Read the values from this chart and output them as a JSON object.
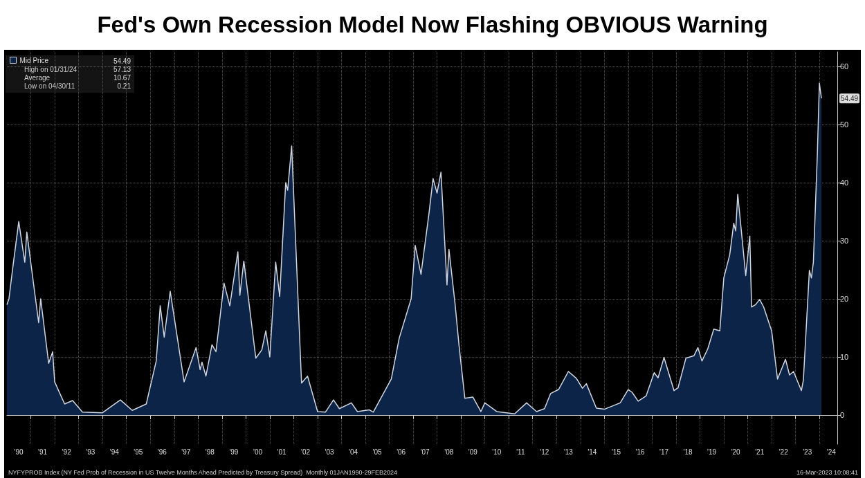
{
  "chart_data": {
    "type": "area",
    "title": "Fed's Own Recession Model Now Flashing OBVIOUS Warning",
    "x": [
      "1990-01",
      "1990-02",
      "1990-04",
      "1990-07",
      "1990-10",
      "1990-11",
      "1991-03",
      "1991-05",
      "1991-06",
      "1991-10",
      "1991-12",
      "1992-01",
      "1992-06",
      "1992-10",
      "1993-03",
      "1994-01",
      "1994-10",
      "1995-04",
      "1995-11",
      "1996-04",
      "1996-06",
      "1996-08",
      "1996-11",
      "1997-06",
      "1997-12",
      "1998-02",
      "1998-03",
      "1998-05",
      "1998-08",
      "1998-10",
      "1999-02",
      "1999-05",
      "1999-09",
      "1999-10",
      "1999-12",
      "2000-06",
      "2000-09",
      "2000-11",
      "2001-01",
      "2001-04",
      "2001-06",
      "2001-09",
      "2001-10",
      "2001-12",
      "2002-05",
      "2002-08",
      "2003-01",
      "2003-05",
      "2003-09",
      "2003-12",
      "2004-06",
      "2004-09",
      "2005-03",
      "2005-05",
      "2006-02",
      "2006-06",
      "2006-12",
      "2007-02",
      "2007-05",
      "2007-09",
      "2007-11",
      "2008-01",
      "2008-03",
      "2008-06",
      "2008-07",
      "2008-10",
      "2008-12",
      "2009-03",
      "2009-07",
      "2009-11",
      "2010-01",
      "2010-07",
      "2011-04",
      "2011-10",
      "2012-03",
      "2012-07",
      "2012-10",
      "2013-02",
      "2013-07",
      "2013-11",
      "2014-02",
      "2014-04",
      "2014-09",
      "2015-01",
      "2015-09",
      "2016-01",
      "2016-03",
      "2016-06",
      "2016-10",
      "2017-02",
      "2017-04",
      "2017-07",
      "2017-12",
      "2018-02",
      "2018-06",
      "2018-10",
      "2018-12",
      "2019-02",
      "2019-05",
      "2019-08",
      "2019-11",
      "2020-01",
      "2020-04",
      "2020-06",
      "2020-07",
      "2020-08",
      "2020-12",
      "2021-02",
      "2021-03",
      "2021-05",
      "2021-07",
      "2021-09",
      "2022-01",
      "2022-04",
      "2022-08",
      "2022-10",
      "2022-12",
      "2023-04",
      "2023-05",
      "2023-08",
      "2023-09",
      "2023-10",
      "2023-12",
      "2024-01",
      "2024-02"
    ],
    "series": [
      {
        "name": "Mid Price",
        "color": "#0b2447",
        "values": [
          19,
          20,
          25.4,
          33.3,
          26.3,
          31.5,
          21.1,
          15.9,
          20,
          8.9,
          10.9,
          5.7,
          1.9,
          2.5,
          0.5,
          0.4,
          2.6,
          0.8,
          1.9,
          9.3,
          18.8,
          13.4,
          21.3,
          5.7,
          11.6,
          7.8,
          9.1,
          6.7,
          12.1,
          10.9,
          22.7,
          18.8,
          28.1,
          20.6,
          26.5,
          9.8,
          11.2,
          14.5,
          10,
          26.3,
          20.4,
          40,
          38.7,
          46.3,
          5.5,
          6.7,
          0.6,
          0.5,
          2.6,
          1.1,
          2.1,
          0.6,
          0.9,
          0.5,
          6.2,
          13.2,
          20,
          29.2,
          24.2,
          34.8,
          40.7,
          38.2,
          41.8,
          22.4,
          28.5,
          19.3,
          12.1,
          2.9,
          3.1,
          0.6,
          2.1,
          0.6,
          0.2,
          2.1,
          0.6,
          1.1,
          3.7,
          4.4,
          7.5,
          6.3,
          4.6,
          5.4,
          1.2,
          1,
          2.1,
          4.4,
          3.9,
          2.4,
          3.3,
          7.3,
          6.4,
          9.9,
          4.2,
          4.7,
          9.8,
          10.2,
          11.6,
          9.3,
          11.4,
          14.8,
          14.5,
          23.6,
          27.6,
          33,
          31.7,
          38,
          24,
          30.8,
          18.6,
          19,
          19.9,
          18.6,
          14.5,
          6.2,
          9.6,
          6.9,
          7.5,
          4.2,
          6,
          24.9,
          23.6,
          26.3,
          45,
          57.1,
          54.5
        ]
      }
    ],
    "xlim": [
      "1990-01",
      "2024-10"
    ],
    "xticks": [
      {
        "value": "1990-07",
        "label": "'90"
      },
      {
        "value": "1991",
        "label": null
      },
      {
        "value": "1991-07",
        "label": "'91"
      },
      {
        "value": "1992",
        "label": null
      },
      {
        "value": "1992-07",
        "label": "'92"
      },
      {
        "value": "1993",
        "label": null
      },
      {
        "value": "1993-07",
        "label": "'93"
      },
      {
        "value": "1994",
        "label": null
      },
      {
        "value": "1994-07",
        "label": "'94"
      },
      {
        "value": "1995",
        "label": null
      },
      {
        "value": "1995-07",
        "label": "'95"
      },
      {
        "value": "1996",
        "label": null
      },
      {
        "value": "1996-07",
        "label": "'96"
      },
      {
        "value": "1997",
        "label": null
      },
      {
        "value": "1997-07",
        "label": "'97"
      },
      {
        "value": "1998",
        "label": null
      },
      {
        "value": "1998-07",
        "label": "'98"
      },
      {
        "value": "1999",
        "label": null
      },
      {
        "value": "1999-07",
        "label": "'99"
      },
      {
        "value": "2000",
        "label": null
      },
      {
        "value": "2000-07",
        "label": "'00"
      },
      {
        "value": "2001",
        "label": null
      },
      {
        "value": "2001-07",
        "label": "'01"
      },
      {
        "value": "2002",
        "label": null
      },
      {
        "value": "2002-07",
        "label": "'02"
      },
      {
        "value": "2003",
        "label": null
      },
      {
        "value": "2003-07",
        "label": "'03"
      },
      {
        "value": "2004",
        "label": null
      },
      {
        "value": "2004-07",
        "label": "'04"
      },
      {
        "value": "2005",
        "label": null
      },
      {
        "value": "2005-07",
        "label": "'05"
      },
      {
        "value": "2006",
        "label": null
      },
      {
        "value": "2006-07",
        "label": "'06"
      },
      {
        "value": "2007",
        "label": null
      },
      {
        "value": "2007-07",
        "label": "'07"
      },
      {
        "value": "2008",
        "label": null
      },
      {
        "value": "2008-07",
        "label": "'08"
      },
      {
        "value": "2009",
        "label": null
      },
      {
        "value": "2009-07",
        "label": "'09"
      },
      {
        "value": "2010",
        "label": null
      },
      {
        "value": "2010-07",
        "label": "'10"
      },
      {
        "value": "2011",
        "label": null
      },
      {
        "value": "2011-07",
        "label": "'11"
      },
      {
        "value": "2012",
        "label": null
      },
      {
        "value": "2012-07",
        "label": "'12"
      },
      {
        "value": "2013",
        "label": null
      },
      {
        "value": "2013-07",
        "label": "'13"
      },
      {
        "value": "2014",
        "label": null
      },
      {
        "value": "2014-07",
        "label": "'14"
      },
      {
        "value": "2015",
        "label": null
      },
      {
        "value": "2015-07",
        "label": "'15"
      },
      {
        "value": "2016",
        "label": null
      },
      {
        "value": "2016-07",
        "label": "'16"
      },
      {
        "value": "2017",
        "label": null
      },
      {
        "value": "2017-07",
        "label": "'17"
      },
      {
        "value": "2018",
        "label": null
      },
      {
        "value": "2018-07",
        "label": "'18"
      },
      {
        "value": "2019",
        "label": null
      },
      {
        "value": "2019-07",
        "label": "'19"
      },
      {
        "value": "2020",
        "label": null
      },
      {
        "value": "2020-07",
        "label": "'20"
      },
      {
        "value": "2021",
        "label": null
      },
      {
        "value": "2021-07",
        "label": "'21"
      },
      {
        "value": "2022",
        "label": null
      },
      {
        "value": "2022-07",
        "label": "'22"
      },
      {
        "value": "2023",
        "label": null
      },
      {
        "value": "2023-07",
        "label": "'23"
      },
      {
        "value": "2024",
        "label": null
      },
      {
        "value": "2024-07",
        "label": "'24"
      }
    ],
    "ylim": [
      -5,
      62.5
    ],
    "yticks": [
      0,
      10,
      20,
      30,
      40,
      50,
      60
    ],
    "grid": true,
    "legend": "top left",
    "annotations": [
      "54.49",
      "High on 01/31/24",
      "57.13",
      "Average",
      "10.67",
      "Low on 04/30/11",
      "0.21",
      "NYFYPROB Index (NY Fed Prob of Recession in US Twelve Months Ahead Predicted by Treasury Spread)  Monthly 01JAN1990-29FEB2024",
      "16-Mar-2023 10:08:41",
      {
        "text": "54.49",
        "x": "2024-02",
        "y": 54.49
      }
    ]
  }
}
